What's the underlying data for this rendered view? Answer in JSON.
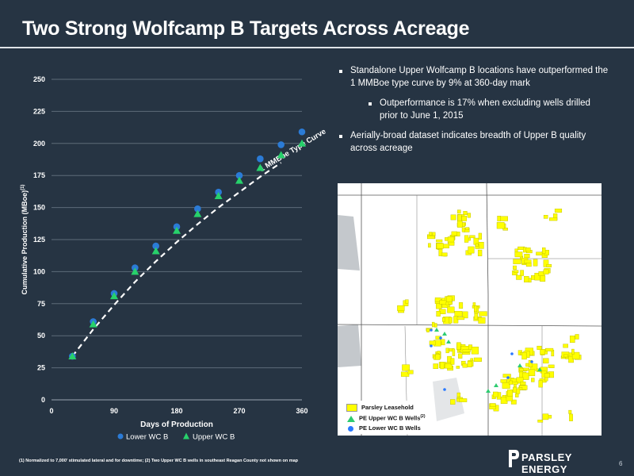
{
  "page": {
    "title": "Two Strong Wolfcamp B Targets Across Acreage",
    "footnote": "(1) Normalized to 7,000' stimulated lateral and for downtime; (2) Two Upper WC B wells in southeast Reagan County not shown on map",
    "page_number": "6",
    "logo_text": "PARSLEY ENERGY"
  },
  "bullets": [
    {
      "text": "Standalone Upper Wolfcamp B locations have outperformed the 1 MMBoe type curve by 9% at 360-day mark",
      "level": 1
    },
    {
      "text": "Outperformance is 17% when excluding wells drilled prior to June 1, 2015",
      "level": 2
    },
    {
      "text": "Aerially-broad dataset indicates breadth of Upper B quality across acreage",
      "level": 1
    }
  ],
  "map": {
    "legend": [
      {
        "label": "Parsley Leasehold",
        "symbol": "square",
        "color": "#ffff00"
      },
      {
        "label": "PE Upper WC B Wells",
        "superscript": "(2)",
        "symbol": "triangle",
        "color": "#2ecc71"
      },
      {
        "label": "PE Lower WC B Wells",
        "symbol": "circle",
        "color": "#2979ff"
      }
    ]
  },
  "chart_data": {
    "type": "scatter",
    "xlabel": "Days of Production",
    "ylabel": "Cumulative Production (MBoe)",
    "ylabel_superscript": "(1)",
    "xlim": [
      0,
      360
    ],
    "ylim": [
      0,
      250
    ],
    "x_ticks": [
      0,
      90,
      180,
      270,
      360
    ],
    "y_ticks": [
      0,
      25,
      50,
      75,
      100,
      125,
      150,
      175,
      200,
      225,
      250
    ],
    "grid": "horizontal",
    "legend_position": "bottom",
    "series": [
      {
        "name": "Lower WC B",
        "marker": "circle",
        "color": "#2b7bd6",
        "x": [
          30,
          60,
          90,
          120,
          150,
          180,
          210,
          240,
          270,
          300,
          330,
          360
        ],
        "y": [
          34,
          61,
          83,
          103,
          120,
          135,
          149,
          162,
          175,
          188,
          199,
          209
        ]
      },
      {
        "name": "Upper WC B",
        "marker": "triangle",
        "color": "#27d16b",
        "x": [
          30,
          60,
          90,
          120,
          150,
          180,
          210,
          240,
          270,
          300,
          330,
          360
        ],
        "y": [
          34,
          59,
          81,
          100,
          116,
          132,
          145,
          159,
          171,
          181,
          191,
          200
        ]
      },
      {
        "name": "1 MMBoe Type Curve",
        "style": "dashed",
        "color": "#ffffff",
        "x": [
          30,
          60,
          90,
          120,
          150,
          180,
          210,
          240,
          270,
          300,
          330
        ],
        "y": [
          34,
          55,
          74,
          92,
          108,
          123,
          137,
          150,
          162,
          174,
          185
        ]
      }
    ],
    "annotations": [
      {
        "text": "1 MMBoe Type Curve"
      }
    ]
  },
  "colors": {
    "background": "#263443",
    "lower_wc_b": "#2b7bd6",
    "upper_wc_b": "#27d16b",
    "leasehold": "#ffff00",
    "gridline": "#5d6b79"
  }
}
